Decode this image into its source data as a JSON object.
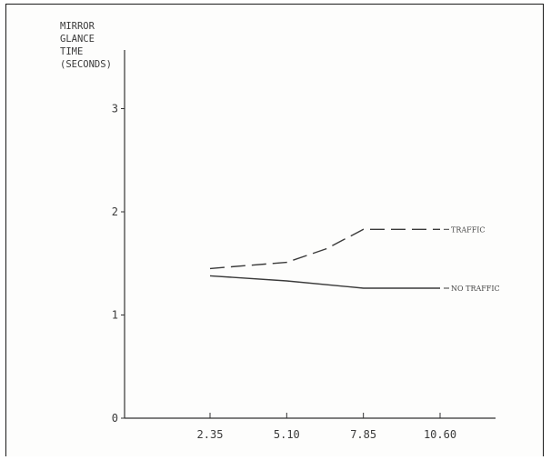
{
  "chart_data": {
    "type": "line",
    "ylabel_lines": [
      "MIRROR",
      "GLANCE",
      "TIME",
      "(SECONDS)"
    ],
    "xlabel": "",
    "x": [
      2.35,
      5.1,
      7.85,
      10.6
    ],
    "x_tick_labels": [
      "2.35",
      "5.10",
      "7.85",
      "10.60"
    ],
    "y_ticks": [
      0,
      1,
      2,
      3
    ],
    "y_tick_labels": [
      "0",
      "1",
      "2",
      "3"
    ],
    "ylim": [
      0,
      3.2
    ],
    "series": [
      {
        "name": "TRAFFIC",
        "style": "dashed",
        "x": [
          2.35,
          3.7,
          5.1,
          6.5,
          7.85,
          10.6
        ],
        "values": [
          1.45,
          1.48,
          1.51,
          1.64,
          1.83,
          1.83
        ]
      },
      {
        "name": "NO TRAFFIC",
        "style": "solid",
        "x": [
          2.35,
          5.1,
          7.85,
          10.6
        ],
        "values": [
          1.38,
          1.33,
          1.26,
          1.26
        ]
      }
    ],
    "grid": false,
    "legend": "inline-right",
    "line_color": "#3a3a3a"
  }
}
